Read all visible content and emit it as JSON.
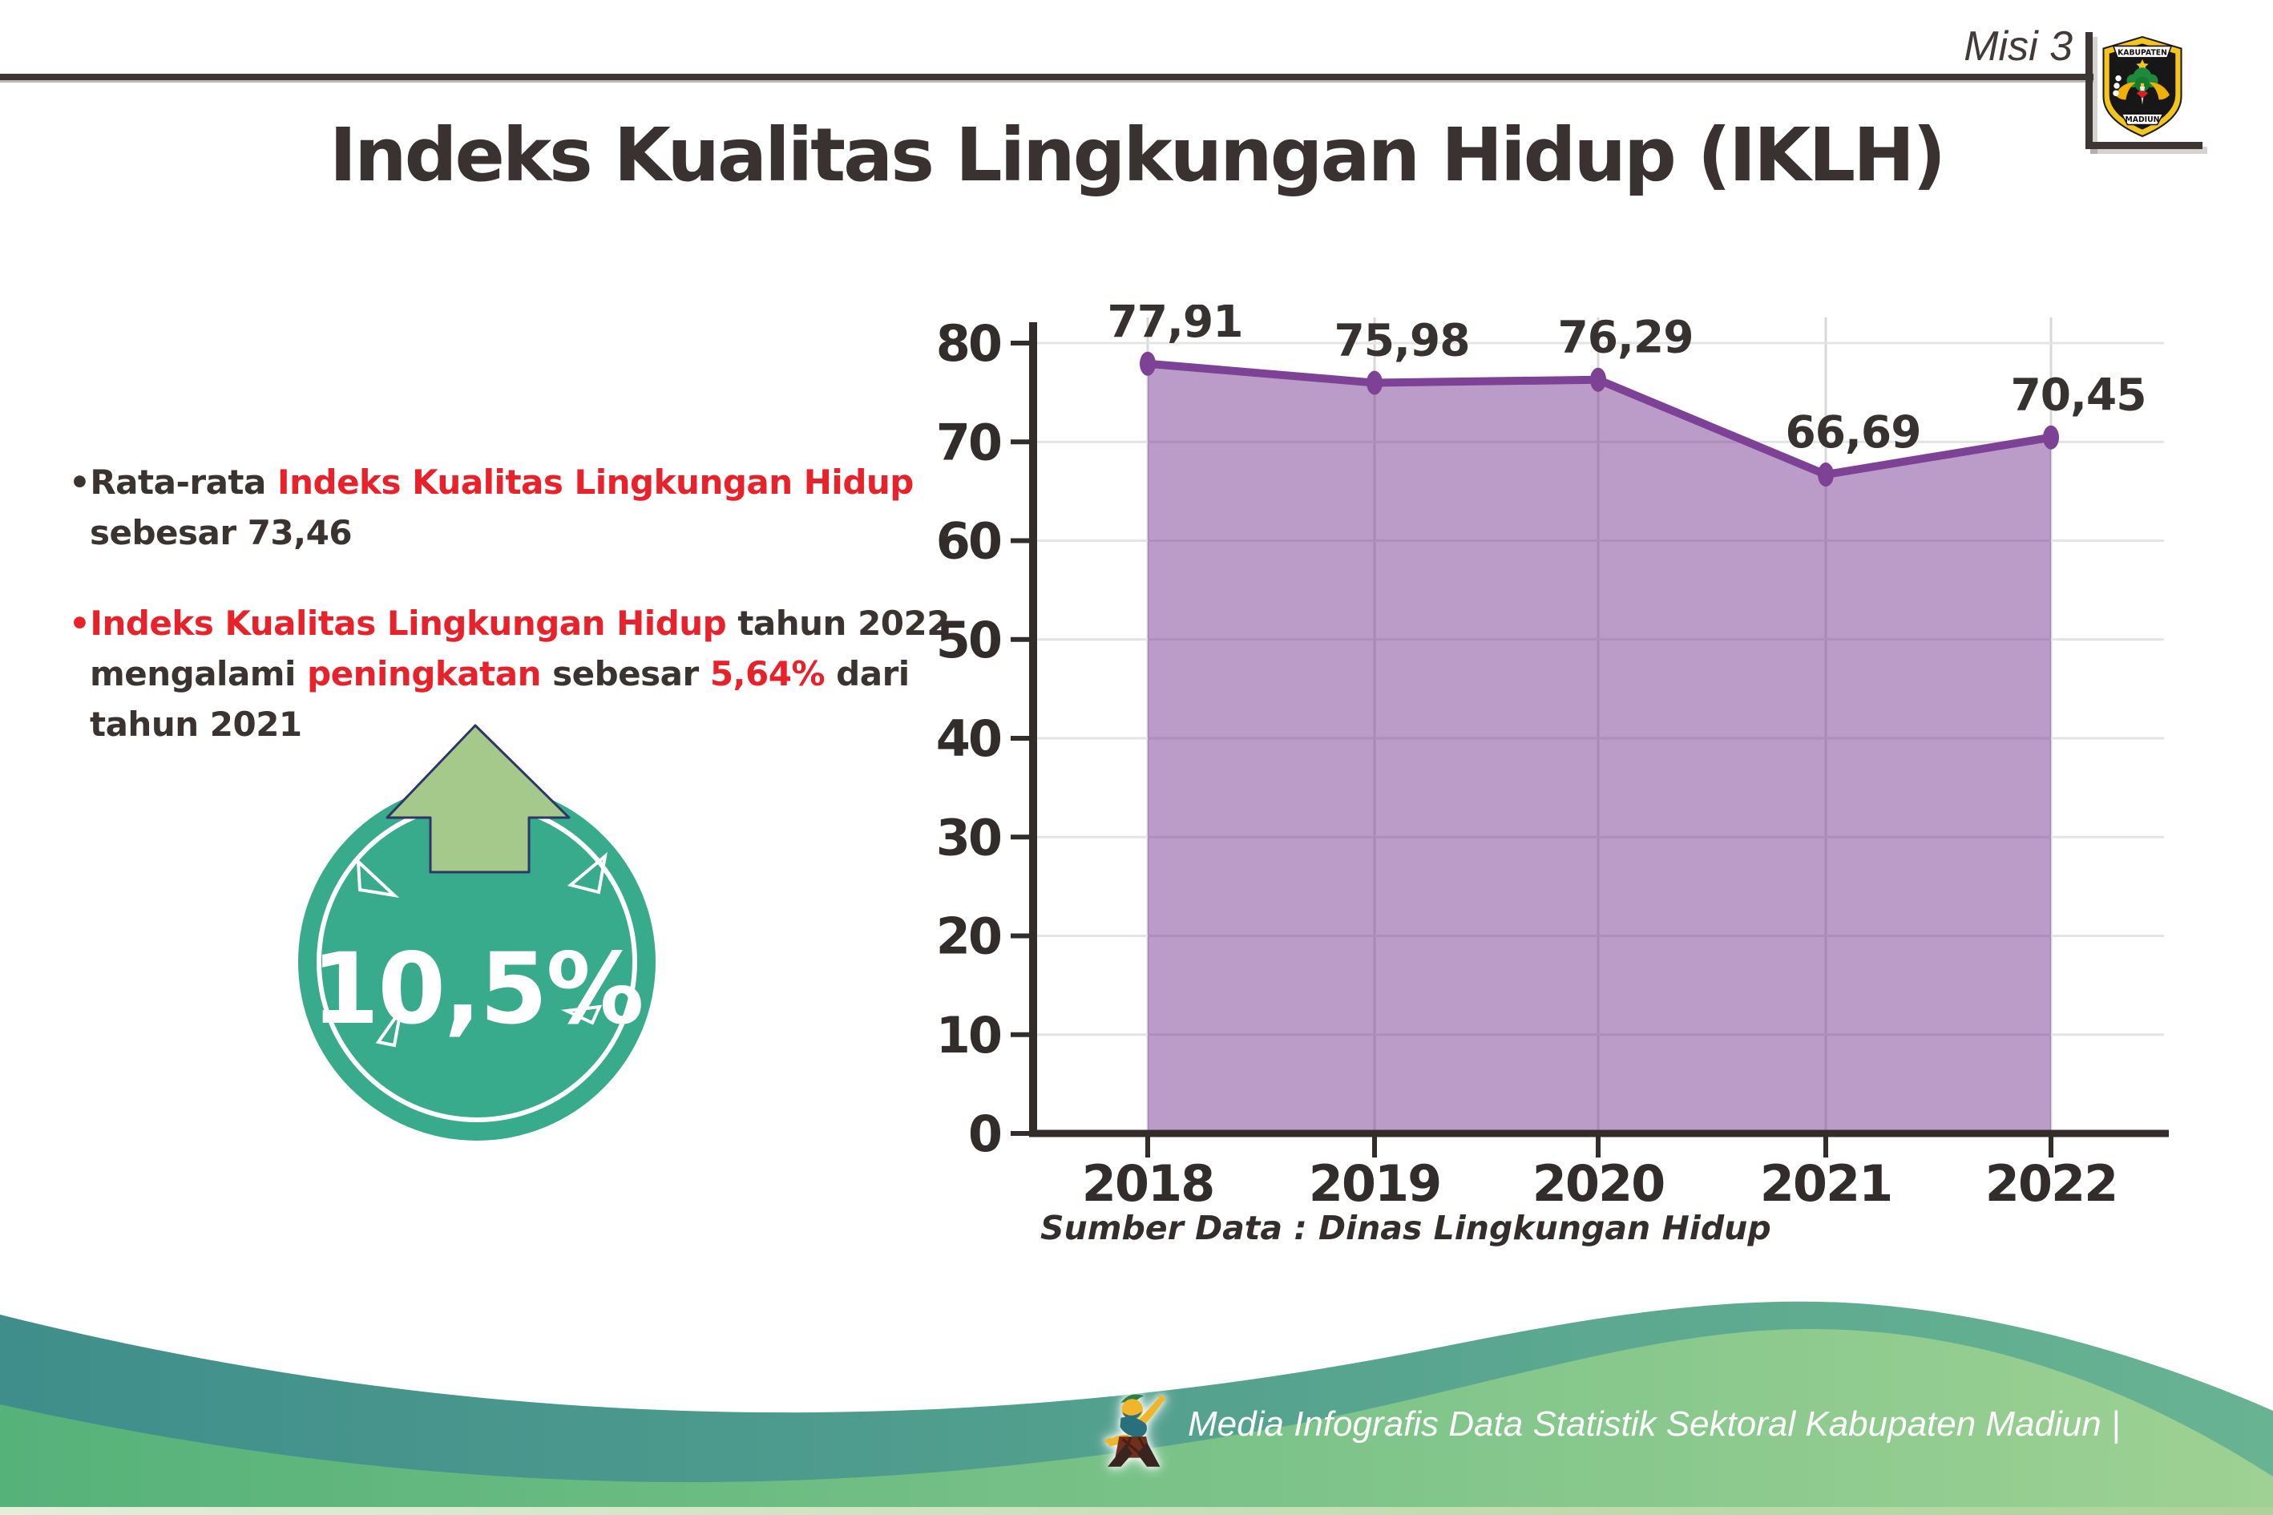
{
  "header": {
    "misi_label": "Misi 3",
    "logo": {
      "top_text": "KABUPATEN",
      "bottom_text": "MADIUN"
    }
  },
  "title": "Indeks Kualitas Lingkungan Hidup (IKLH)",
  "bullets": [
    {
      "segments": [
        {
          "t": "•Rata-rata ",
          "c": "dark"
        },
        {
          "t": "Indeks Kualitas Lingkungan Hidup",
          "c": "red",
          "br": true
        },
        {
          "t": "sebesar 73,46",
          "c": "dark"
        }
      ]
    },
    {
      "segments": [
        {
          "t": "•Indeks Kualitas Lingkungan Hidup",
          "c": "red"
        },
        {
          "t": " tahun 2022",
          "c": "dark",
          "br": true
        },
        {
          "t": "mengalami ",
          "c": "dark"
        },
        {
          "t": "peningkatan",
          "c": "red"
        },
        {
          "t": " sebesar ",
          "c": "dark"
        },
        {
          "t": "5,64%",
          "c": "red"
        },
        {
          "t": " dari",
          "c": "dark",
          "br": true
        },
        {
          "t": "tahun 2021",
          "c": "dark"
        }
      ]
    }
  ],
  "badge": {
    "value": "10,5%",
    "direction": "up"
  },
  "chart_data": {
    "type": "area",
    "categories": [
      "2018",
      "2019",
      "2020",
      "2021",
      "2022"
    ],
    "values": [
      77.91,
      75.98,
      76.29,
      66.69,
      70.45
    ],
    "value_labels": [
      "77,91",
      "75,98",
      "76,29",
      "66,69",
      "70,45"
    ],
    "yticks": [
      0,
      10,
      20,
      30,
      40,
      50,
      60,
      70,
      80
    ],
    "ylim": [
      0,
      80
    ],
    "grid": true,
    "legend": "none",
    "line_color": "#7d4195",
    "fill_color": "#b58bc2",
    "source": "Sumber Data : Dinas Lingkungan Hidup"
  },
  "footer": {
    "credit": "Media Infografis Data Statistik Sektoral Kabupaten Madiun |"
  },
  "colors": {
    "accent_red": "#e8222b",
    "text_dark": "#3a3330",
    "badge_teal": "#38ab8c",
    "arrow_green": "#a5c98b",
    "arrow_outline": "#2c3766",
    "chart_purple": "#7d4195",
    "axis_dark": "#322d2b",
    "footer_teal_left": "#3f8e8b",
    "footer_teal_right": "#68b392",
    "footer_green_left": "#55b279",
    "footer_green_right": "#9ed193"
  }
}
